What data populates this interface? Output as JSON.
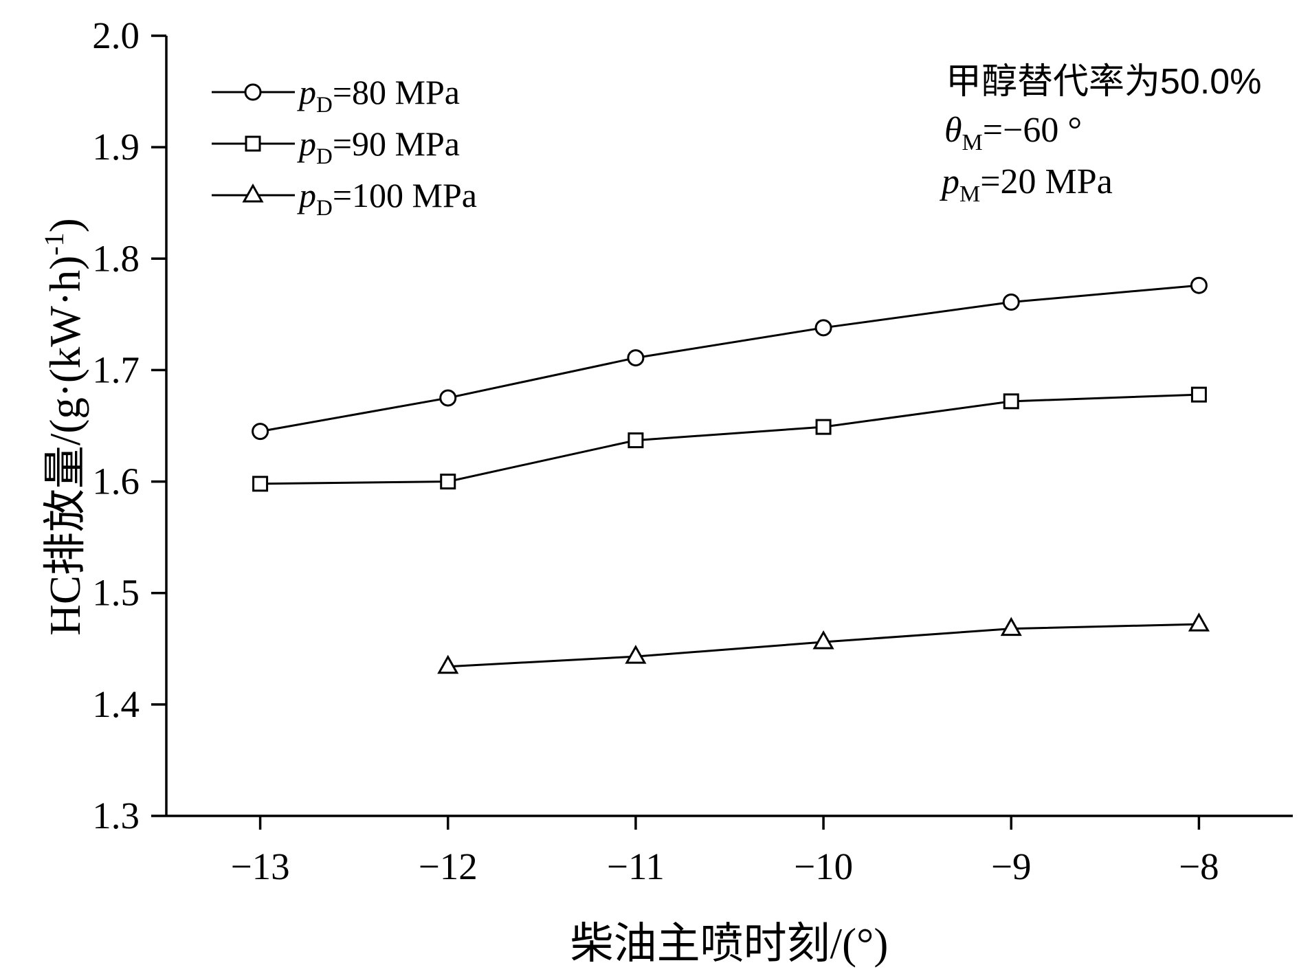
{
  "chart_data": {
    "type": "line",
    "title": "",
    "xlabel": "柴油主喷时刻/(°)",
    "ylabel": {
      "main": "HC排放量/(g·(kW·h)",
      "sup": "-1",
      "tail": ")"
    },
    "x": [
      -13,
      -12,
      -11,
      -10,
      -9,
      -8
    ],
    "x_tick_labels": [
      "−13",
      "−12",
      "−11",
      "−10",
      "−9",
      "−8"
    ],
    "xlim": [
      -13.5,
      -7.5
    ],
    "y_ticks": [
      1.3,
      1.4,
      1.5,
      1.6,
      1.7,
      1.8,
      1.9,
      2.0
    ],
    "y_tick_labels": [
      "1.3",
      "1.4",
      "1.5",
      "1.6",
      "1.7",
      "1.8",
      "1.9",
      "2.0"
    ],
    "ylim": [
      1.3,
      2.0
    ],
    "grid": false,
    "legend_position": "top-left",
    "series": [
      {
        "name": {
          "var": "p",
          "sub": "D",
          "rest": "=80 MPa"
        },
        "marker": "circle",
        "color": "#000000",
        "values": [
          1.645,
          1.675,
          1.711,
          1.738,
          1.761,
          1.776
        ]
      },
      {
        "name": {
          "var": "p",
          "sub": "D",
          "rest": "=90 MPa"
        },
        "marker": "square",
        "color": "#000000",
        "values": [
          1.598,
          1.6,
          1.637,
          1.649,
          1.672,
          1.678
        ]
      },
      {
        "name": {
          "var": "p",
          "sub": "D",
          "rest": "=100 MPa"
        },
        "marker": "triangle",
        "color": "#000000",
        "values": [
          null,
          1.434,
          1.443,
          1.456,
          1.468,
          1.472
        ]
      }
    ],
    "annotations": [
      {
        "text": "甲醇替代率为50.0%"
      },
      {
        "var": "θ",
        "sub": "M",
        "rest": "=−60 °"
      },
      {
        "var": "p",
        "sub": "M",
        "rest": "=20 MPa"
      }
    ]
  },
  "colors": {
    "background": "#ffffff",
    "ink": "#000000",
    "marker_fill": "#ffffff"
  }
}
